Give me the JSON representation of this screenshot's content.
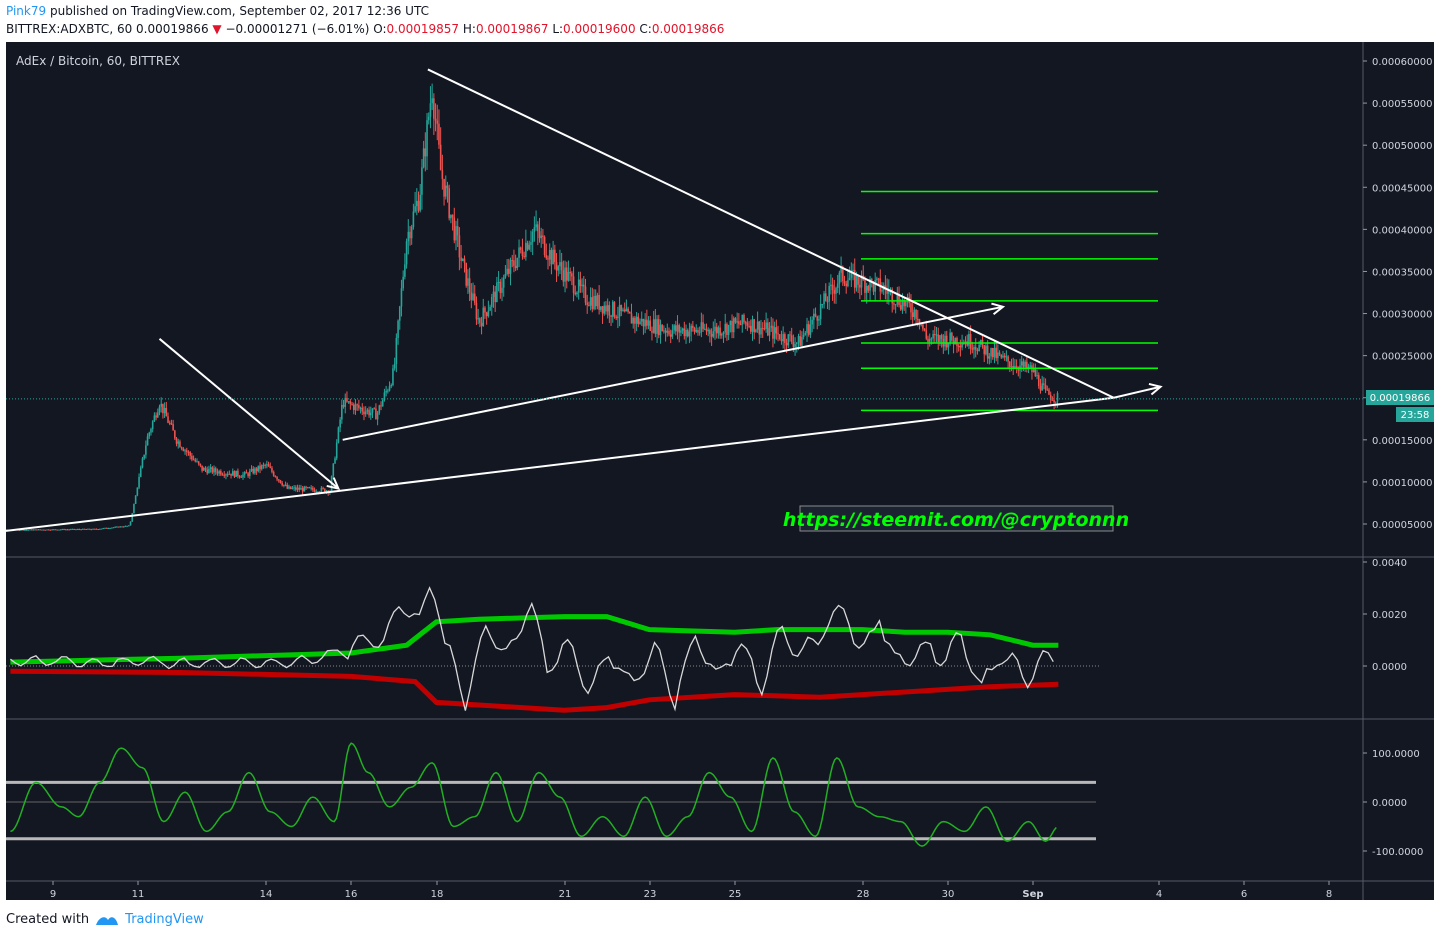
{
  "header": {
    "author": "Pink79",
    "published_text": "published on TradingView.com, September 02, 2017 12:36 UTC",
    "symbol": "BITTREX:ADXBTC, 60",
    "last": "0.00019866",
    "change": "−0.00001271 (−6.01%)",
    "o_label": "O:",
    "o_value": "0.00019857",
    "h_label": "H:",
    "h_value": "0.00019867",
    "l_label": "L:",
    "l_value": "0.00019600",
    "c_label": "C:",
    "c_value": "0.00019866"
  },
  "chart_title": "AdEx / Bitcoin, 60, BITTREX",
  "watermark_link": "https://steemit.com/@cryptonnn",
  "price_tag": "0.00019866",
  "countdown_tag": "23:58",
  "footer": {
    "created_with": "Created with",
    "brand": "TradingView"
  },
  "colors": {
    "background": "#131722",
    "up": "#26a69a",
    "down": "#ef5350",
    "fib_lines": "#00ff00",
    "trend_lines": "#ffffff",
    "band_upper": "#00c800",
    "band_lower": "#c00000",
    "oscillator": "#d8d8d8",
    "cci": "#22b022",
    "cci_levels": "#b8b8b8",
    "price_tag": "#26a69a"
  },
  "chart_data": [
    {
      "type": "candlestick",
      "title": "AdEx / Bitcoin, 60, BITTREX",
      "ylim": [
        0.0,
        0.00062
      ],
      "y_ticks": [
        "0.00005000",
        "0.00010000",
        "0.00015000",
        "0.00020000",
        "0.00025000",
        "0.00030000",
        "0.00035000",
        "0.00040000",
        "0.00045000",
        "0.00050000",
        "0.00055000",
        "0.00060000"
      ],
      "x_ticks": [
        "9",
        "11",
        "14",
        "16",
        "18",
        "21",
        "23",
        "25",
        "28",
        "30",
        "Sep",
        "4",
        "6",
        "8"
      ],
      "price_path": [
        [
          8.0,
          4.3e-05
        ],
        [
          10.0,
          4.4e-05
        ],
        [
          10.8,
          4.8e-05
        ],
        [
          11.2,
          0.00015
        ],
        [
          11.5,
          0.000195
        ],
        [
          11.9,
          0.00015
        ],
        [
          12.5,
          0.000115
        ],
        [
          13.5,
          0.000108
        ],
        [
          14.0,
          0.00012
        ],
        [
          14.5,
          9.2e-05
        ],
        [
          15.5,
          9e-05
        ],
        [
          15.8,
          0.000195
        ],
        [
          16.6,
          0.00018
        ],
        [
          17.0,
          0.00023
        ],
        [
          17.3,
          0.00039
        ],
        [
          17.6,
          0.00044
        ],
        [
          17.9,
          0.00057
        ],
        [
          18.1,
          0.00047
        ],
        [
          18.6,
          0.00036
        ],
        [
          19.0,
          0.00029
        ],
        [
          19.7,
          0.00035
        ],
        [
          20.3,
          0.0004
        ],
        [
          20.8,
          0.00036
        ],
        [
          21.5,
          0.00032
        ],
        [
          22.5,
          0.000295
        ],
        [
          23.5,
          0.00028
        ],
        [
          24.5,
          0.00028
        ],
        [
          25.3,
          0.00029
        ],
        [
          26.5,
          0.000265
        ],
        [
          27.5,
          0.000345
        ],
        [
          27.8,
          0.00034
        ],
        [
          28.5,
          0.00033
        ],
        [
          29.3,
          0.0003
        ],
        [
          29.5,
          0.00027
        ],
        [
          30.5,
          0.000268
        ],
        [
          31.3,
          0.000245
        ],
        [
          32.0,
          0.000232
        ],
        [
          32.3,
          0.000205
        ],
        [
          32.6,
          0.000199
        ]
      ],
      "horizontal_levels": [
        0.000445,
        0.000395,
        0.000365,
        0.000315,
        0.000265,
        0.000235,
        0.000185
      ],
      "trend_lines": [
        {
          "x1": 7.6,
          "y1": 4e-05,
          "x2": 33.9,
          "y2": 0.0002
        },
        {
          "x1": 11.5,
          "y1": 0.00027,
          "x2": 15.7,
          "y2": 9.2e-05
        },
        {
          "x1": 15.8,
          "y1": 0.00015,
          "x2": 31.3,
          "y2": 0.000308
        },
        {
          "x1": 17.8,
          "y1": 0.00059,
          "x2": 33.9,
          "y2": 0.0002
        },
        {
          "x1": 33.9,
          "y1": 0.0002,
          "x2": 35.0,
          "y2": 0.000213
        }
      ],
      "last_price": 0.00019866
    },
    {
      "type": "line",
      "title": "",
      "ylim": [
        -0.002,
        0.004
      ],
      "y_ticks": [
        "0.0040",
        "0.0020",
        "0.0000"
      ],
      "series": [
        {
          "values": [
            [
              8,
              0.00015
            ],
            [
              12,
              0.0003
            ],
            [
              16,
              0.0005
            ],
            [
              17.3,
              0.0008
            ],
            [
              18,
              0.0017
            ],
            [
              19,
              0.0018
            ],
            [
              21,
              0.0019
            ],
            [
              22,
              0.0019
            ],
            [
              23,
              0.0014
            ],
            [
              25,
              0.0013
            ],
            [
              26,
              0.0014
            ],
            [
              27,
              0.0014
            ],
            [
              28,
              0.0014
            ],
            [
              29,
              0.0013
            ],
            [
              30,
              0.0013
            ],
            [
              31,
              0.0012
            ],
            [
              32,
              0.0008
            ],
            [
              32.6,
              0.0008
            ]
          ]
        },
        {
          "values": [
            [
              8,
              -0.0002
            ],
            [
              12,
              -0.00025
            ],
            [
              16,
              -0.0004
            ],
            [
              17.5,
              -0.0006
            ],
            [
              18,
              -0.0014
            ],
            [
              19,
              -0.0015
            ],
            [
              21,
              -0.0017
            ],
            [
              22,
              -0.0016
            ],
            [
              23,
              -0.0013
            ],
            [
              25,
              -0.0011
            ],
            [
              27,
              -0.0012
            ],
            [
              28,
              -0.0011
            ],
            [
              30,
              -0.0009
            ],
            [
              31,
              -0.0008
            ],
            [
              32.6,
              -0.0007
            ]
          ]
        }
      ],
      "oscillator": [
        [
          8,
          0.0002
        ],
        [
          9,
          0.0002
        ],
        [
          10,
          0.0001
        ],
        [
          11,
          0.0002
        ],
        [
          12,
          0.0001
        ],
        [
          13,
          0.0001
        ],
        [
          14,
          0.0001
        ],
        [
          15,
          0.0002
        ],
        [
          15.8,
          0.0006
        ],
        [
          16.2,
          0.0009
        ],
        [
          16.8,
          0.0011
        ],
        [
          17.2,
          0.0025
        ],
        [
          17.6,
          0.0016
        ],
        [
          17.9,
          0.0035
        ],
        [
          18.2,
          0.0008
        ],
        [
          18.7,
          -0.0013
        ],
        [
          19.2,
          0.0016
        ],
        [
          19.7,
          0.0002
        ],
        [
          20.2,
          0.0027
        ],
        [
          20.6,
          -0.0002
        ],
        [
          21.0,
          0.001
        ],
        [
          21.6,
          -0.001
        ],
        [
          22.1,
          0.0006
        ],
        [
          22.6,
          -0.0009
        ],
        [
          23.1,
          0.0008
        ],
        [
          23.6,
          -0.0012
        ],
        [
          24.1,
          0.0012
        ],
        [
          24.6,
          -0.0006
        ],
        [
          25.1,
          0.001
        ],
        [
          25.6,
          -0.0008
        ],
        [
          26.1,
          0.0013
        ],
        [
          26.6,
          0.0004
        ],
        [
          27.1,
          0.0015
        ],
        [
          27.6,
          0.0023
        ],
        [
          28.0,
          0.0003
        ],
        [
          28.4,
          0.002
        ],
        [
          28.8,
          -0.0001
        ],
        [
          29.3,
          0.0008
        ],
        [
          29.8,
          0.0003
        ],
        [
          30.3,
          0.001
        ],
        [
          30.8,
          -0.0008
        ],
        [
          31.3,
          0.0006
        ],
        [
          31.8,
          -0.0006
        ],
        [
          32.2,
          0.0002
        ],
        [
          32.6,
          0.0003
        ]
      ]
    },
    {
      "type": "line",
      "title": "",
      "ylim": [
        -140,
        150
      ],
      "y_ticks": [
        "100.0000",
        "0.0000",
        "-100.0000"
      ],
      "levels": [
        40,
        -75
      ],
      "series": [
        {
          "values": [
            [
              8,
              -60
            ],
            [
              8.6,
              40
            ],
            [
              9.2,
              -10
            ],
            [
              9.6,
              -30
            ],
            [
              10.1,
              40
            ],
            [
              10.6,
              110
            ],
            [
              11.1,
              70
            ],
            [
              11.6,
              -40
            ],
            [
              12.1,
              20
            ],
            [
              12.6,
              -60
            ],
            [
              13.1,
              -20
            ],
            [
              13.6,
              60
            ],
            [
              14.1,
              -20
            ],
            [
              14.6,
              -50
            ],
            [
              15.1,
              10
            ],
            [
              15.6,
              -40
            ],
            [
              16.0,
              120
            ],
            [
              16.4,
              60
            ],
            [
              16.9,
              -10
            ],
            [
              17.4,
              30
            ],
            [
              17.9,
              80
            ],
            [
              18.4,
              -50
            ],
            [
              18.9,
              -30
            ],
            [
              19.4,
              60
            ],
            [
              19.9,
              -40
            ],
            [
              20.4,
              60
            ],
            [
              20.9,
              10
            ],
            [
              21.4,
              -70
            ],
            [
              21.9,
              -30
            ],
            [
              22.4,
              -70
            ],
            [
              22.9,
              10
            ],
            [
              23.4,
              -70
            ],
            [
              23.9,
              -30
            ],
            [
              24.4,
              60
            ],
            [
              24.9,
              10
            ],
            [
              25.4,
              -60
            ],
            [
              25.9,
              90
            ],
            [
              26.4,
              -20
            ],
            [
              26.9,
              -70
            ],
            [
              27.4,
              90
            ],
            [
              27.9,
              -10
            ],
            [
              28.4,
              -30
            ],
            [
              28.9,
              -40
            ],
            [
              29.4,
              -90
            ],
            [
              29.9,
              -40
            ],
            [
              30.4,
              -60
            ],
            [
              30.9,
              -10
            ],
            [
              31.4,
              -80
            ],
            [
              31.9,
              -40
            ],
            [
              32.3,
              -80
            ],
            [
              32.6,
              -50
            ]
          ]
        }
      ]
    }
  ]
}
